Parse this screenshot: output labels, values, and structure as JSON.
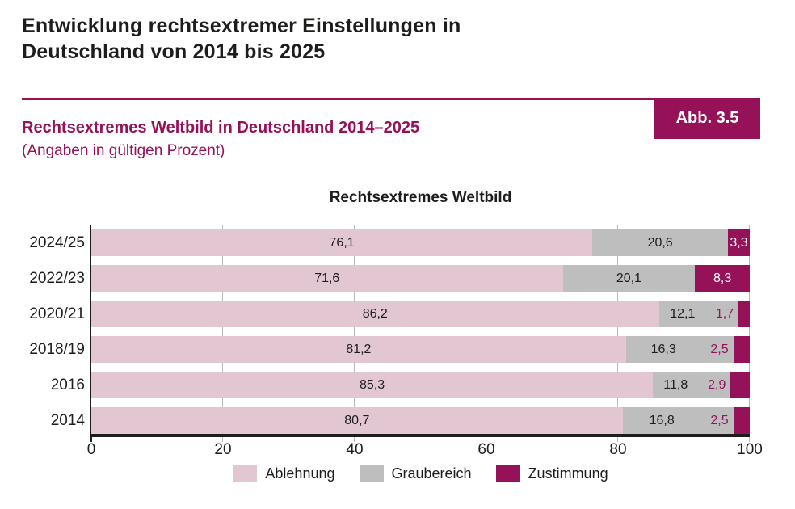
{
  "page": {
    "title": "Entwicklung rechtsextremer Einstellungen in\nDeutschland von 2014 bis 2025",
    "figure_label": "Abb. 3.5",
    "subtitle": "Rechtsextremes Weltbild in Deutschland 2014–2025",
    "subtitle_note": "(Angaben in gültigen Prozent)"
  },
  "colors": {
    "accent": "#951259",
    "text_dark": "#1d1d1b",
    "gridline": "#b9b9b9",
    "ablehnung": "#e2c7d3",
    "graubereich": "#bfbebf",
    "zustimmung": "#951259"
  },
  "chart_data": {
    "type": "bar",
    "orientation": "horizontal",
    "stacked": true,
    "title": "Rechtsextremes Weltbild",
    "categories": [
      "2024/25",
      "2022/23",
      "2020/21",
      "2018/19",
      "2016",
      "2014"
    ],
    "series": [
      {
        "name": "Ablehnung",
        "color": "#e2c7d3",
        "values": [
          76.1,
          71.6,
          86.2,
          81.2,
          85.3,
          80.7
        ]
      },
      {
        "name": "Graubereich",
        "color": "#bfbebf",
        "values": [
          20.6,
          20.1,
          12.1,
          16.3,
          11.8,
          16.8
        ]
      },
      {
        "name": "Zustimmung",
        "color": "#951259",
        "values": [
          3.3,
          8.3,
          1.7,
          2.5,
          2.9,
          2.5
        ]
      }
    ],
    "value_labels": [
      [
        "76,1",
        "20,6",
        "3,3"
      ],
      [
        "71,6",
        "20,1",
        "8,3"
      ],
      [
        "86,2",
        "12,1",
        "1,7"
      ],
      [
        "81,2",
        "16,3",
        "2,5"
      ],
      [
        "85,3",
        "11,8",
        "2,9"
      ],
      [
        "80,7",
        "16,8",
        "2,5"
      ]
    ],
    "xlim": [
      0,
      100
    ],
    "x_ticks": [
      0,
      20,
      40,
      60,
      80,
      100
    ],
    "legend": [
      "Ablehnung",
      "Graubereich",
      "Zustimmung"
    ],
    "legend_position": "bottom",
    "grid": "vertical"
  }
}
